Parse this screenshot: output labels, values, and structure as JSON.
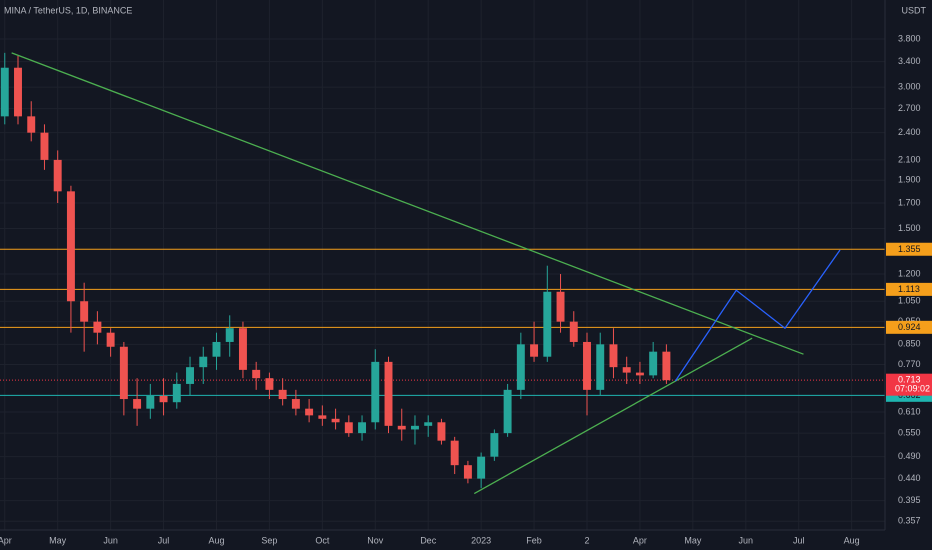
{
  "chart_data": {
    "type": "candlestick",
    "title": "MINA / TetherUS, 1D, BINANCE",
    "y_unit": "USDT",
    "log_scale": true,
    "grid": true,
    "up_color": "#26a69a",
    "down_color": "#ef5350",
    "xlim": [
      -0.09,
      16.63
    ],
    "ylim": [
      0.342,
      4.6
    ],
    "xticks": [
      {
        "value": 0,
        "label": "Apr"
      },
      {
        "value": 1,
        "label": "May"
      },
      {
        "value": 2,
        "label": "Jun"
      },
      {
        "value": 3,
        "label": "Jul"
      },
      {
        "value": 4,
        "label": "Aug"
      },
      {
        "value": 5,
        "label": "Sep"
      },
      {
        "value": 6,
        "label": "Oct"
      },
      {
        "value": 7,
        "label": "Nov"
      },
      {
        "value": 8,
        "label": "Dec"
      },
      {
        "value": 9,
        "label": "2023"
      },
      {
        "value": 10,
        "label": "Feb"
      },
      {
        "value": 11,
        "label": "2"
      },
      {
        "value": 12,
        "label": "Apr"
      },
      {
        "value": 13,
        "label": "May"
      },
      {
        "value": 14,
        "label": "Jun"
      },
      {
        "value": 15,
        "label": "Jul"
      },
      {
        "value": 16,
        "label": "Aug"
      }
    ],
    "yticks": [
      {
        "value": 3.8,
        "label": "3.800"
      },
      {
        "value": 3.4,
        "label": "3.400"
      },
      {
        "value": 3.0,
        "label": "3.000"
      },
      {
        "value": 2.7,
        "label": "2.700"
      },
      {
        "value": 2.4,
        "label": "2.400"
      },
      {
        "value": 2.1,
        "label": "2.100"
      },
      {
        "value": 1.9,
        "label": "1.900"
      },
      {
        "value": 1.7,
        "label": "1.700"
      },
      {
        "value": 1.5,
        "label": "1.500"
      },
      {
        "value": 1.2,
        "label": "1.200"
      },
      {
        "value": 1.05,
        "label": "1.050"
      },
      {
        "value": 0.95,
        "label": "0.950"
      },
      {
        "value": 0.85,
        "label": "0.850"
      },
      {
        "value": 0.77,
        "label": "0.770"
      },
      {
        "value": 0.61,
        "label": "0.610"
      },
      {
        "value": 0.55,
        "label": "0.550"
      },
      {
        "value": 0.49,
        "label": "0.490"
      },
      {
        "value": 0.44,
        "label": "0.440"
      },
      {
        "value": 0.395,
        "label": "0.395"
      },
      {
        "value": 0.357,
        "label": "0.357"
      }
    ],
    "candles": {
      "x": [
        0,
        0.25,
        0.5,
        0.75,
        1,
        1.25,
        1.5,
        1.75,
        2,
        2.25,
        2.5,
        2.75,
        3,
        3.25,
        3.5,
        3.75,
        4,
        4.25,
        4.5,
        4.75,
        5,
        5.25,
        5.5,
        5.75,
        6,
        6.25,
        6.5,
        6.75,
        7,
        7.25,
        7.5,
        7.75,
        8,
        8.25,
        8.5,
        8.75,
        9,
        9.25,
        9.5,
        9.75,
        10,
        10.25,
        10.5,
        10.75,
        11,
        11.25,
        11.5,
        11.75,
        12,
        12.25,
        12.5
      ],
      "open": [
        2.6,
        3.3,
        2.6,
        2.4,
        2.1,
        1.8,
        1.05,
        0.95,
        0.9,
        0.84,
        0.65,
        0.62,
        0.66,
        0.64,
        0.7,
        0.76,
        0.8,
        0.86,
        0.92,
        0.75,
        0.72,
        0.68,
        0.65,
        0.62,
        0.6,
        0.59,
        0.58,
        0.55,
        0.58,
        0.78,
        0.57,
        0.56,
        0.57,
        0.58,
        0.53,
        0.47,
        0.44,
        0.49,
        0.55,
        0.68,
        0.85,
        0.8,
        1.1,
        0.95,
        0.86,
        0.68,
        0.85,
        0.76,
        0.74,
        0.73,
        0.82
      ],
      "high": [
        3.55,
        3.5,
        2.8,
        2.5,
        2.2,
        1.85,
        1.15,
        1.0,
        0.92,
        0.86,
        0.72,
        0.7,
        0.72,
        0.74,
        0.8,
        0.84,
        0.9,
        0.98,
        0.95,
        0.78,
        0.74,
        0.72,
        0.68,
        0.65,
        0.63,
        0.62,
        0.6,
        0.6,
        0.83,
        0.8,
        0.62,
        0.6,
        0.6,
        0.59,
        0.54,
        0.48,
        0.5,
        0.56,
        0.7,
        0.9,
        0.95,
        1.25,
        1.2,
        1.0,
        0.9,
        0.9,
        0.92,
        0.8,
        0.78,
        0.86,
        0.85
      ],
      "low": [
        2.5,
        2.5,
        2.3,
        2.0,
        1.7,
        0.9,
        0.82,
        0.85,
        0.8,
        0.6,
        0.57,
        0.59,
        0.6,
        0.62,
        0.66,
        0.7,
        0.75,
        0.8,
        0.72,
        0.68,
        0.65,
        0.63,
        0.6,
        0.58,
        0.57,
        0.56,
        0.54,
        0.53,
        0.56,
        0.55,
        0.53,
        0.52,
        0.54,
        0.52,
        0.45,
        0.43,
        0.42,
        0.48,
        0.54,
        0.65,
        0.78,
        0.78,
        0.9,
        0.84,
        0.6,
        0.66,
        0.72,
        0.7,
        0.7,
        0.72,
        0.7
      ],
      "close": [
        3.3,
        2.6,
        2.4,
        2.1,
        1.8,
        1.05,
        0.95,
        0.9,
        0.84,
        0.65,
        0.62,
        0.66,
        0.64,
        0.7,
        0.76,
        0.8,
        0.86,
        0.92,
        0.75,
        0.72,
        0.68,
        0.65,
        0.62,
        0.6,
        0.59,
        0.58,
        0.55,
        0.58,
        0.78,
        0.57,
        0.56,
        0.57,
        0.58,
        0.53,
        0.47,
        0.44,
        0.49,
        0.55,
        0.68,
        0.85,
        0.8,
        1.1,
        0.95,
        0.86,
        0.68,
        0.85,
        0.76,
        0.74,
        0.73,
        0.82,
        0.713
      ]
    },
    "levels": [
      {
        "value": 1.355,
        "color": "#f59f1b"
      },
      {
        "value": 1.113,
        "color": "#f59f1b"
      },
      {
        "value": 0.924,
        "color": "#f59f1b"
      },
      {
        "value": 0.662,
        "color": "#1fb5b0"
      }
    ],
    "last_price": {
      "value": 0.713,
      "countdown": "07:09:02",
      "color": "#f23645"
    },
    "drawings": [
      {
        "color": "#4caf50",
        "x": [
          0.13,
          15.09
        ],
        "y": [
          3.55,
          0.81
        ]
      },
      {
        "color": "#4caf50",
        "x": [
          8.87,
          14.12
        ],
        "y": [
          0.409,
          0.876
        ]
      },
      {
        "color": "#2962ff",
        "x": [
          12.67,
          13.82,
          14.74,
          15.78
        ],
        "y": [
          0.71,
          1.108,
          0.92,
          1.35
        ]
      }
    ]
  }
}
